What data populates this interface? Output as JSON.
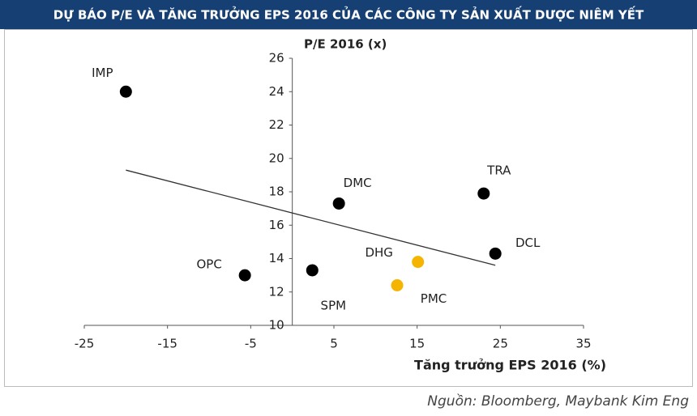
{
  "title": "DỰ BÁO P/E VÀ TĂNG TRƯỞNG EPS 2016 CỦA CÁC CÔNG TY SẢN XUẤT DƯỢC NIÊM YẾT",
  "source": "Nguồn: Bloomberg, Maybank Kim Eng",
  "chart_data": {
    "type": "scatter",
    "ylabel": "P/E 2016 (x)",
    "xlabel": "Tăng trưởng EPS 2016 (%)",
    "labels": [
      "IMP",
      "OPC",
      "SPM",
      "DMC",
      "DHG",
      "PMC",
      "TRA",
      "DCL"
    ],
    "x": [
      -20,
      -5.7,
      2.4,
      5.6,
      15.1,
      12.6,
      23,
      24.4
    ],
    "y": [
      24,
      13,
      13.3,
      17.3,
      13.8,
      12.4,
      17.9,
      14.3
    ],
    "colors": [
      "#000000",
      "#000000",
      "#000000",
      "#000000",
      "#f5b400",
      "#f5b400",
      "#000000",
      "#000000"
    ],
    "trendline": {
      "x": [
        -20,
        24.4
      ],
      "y": [
        19.3,
        13.6
      ],
      "color": "#333333"
    },
    "xlim": [
      -25,
      35
    ],
    "xticks": [
      -25,
      -15,
      -5,
      5,
      15,
      25,
      35
    ],
    "ylim": [
      10,
      26
    ],
    "yticks": [
      10,
      12,
      14,
      16,
      18,
      20,
      22,
      24,
      26
    ],
    "grid": false
  }
}
